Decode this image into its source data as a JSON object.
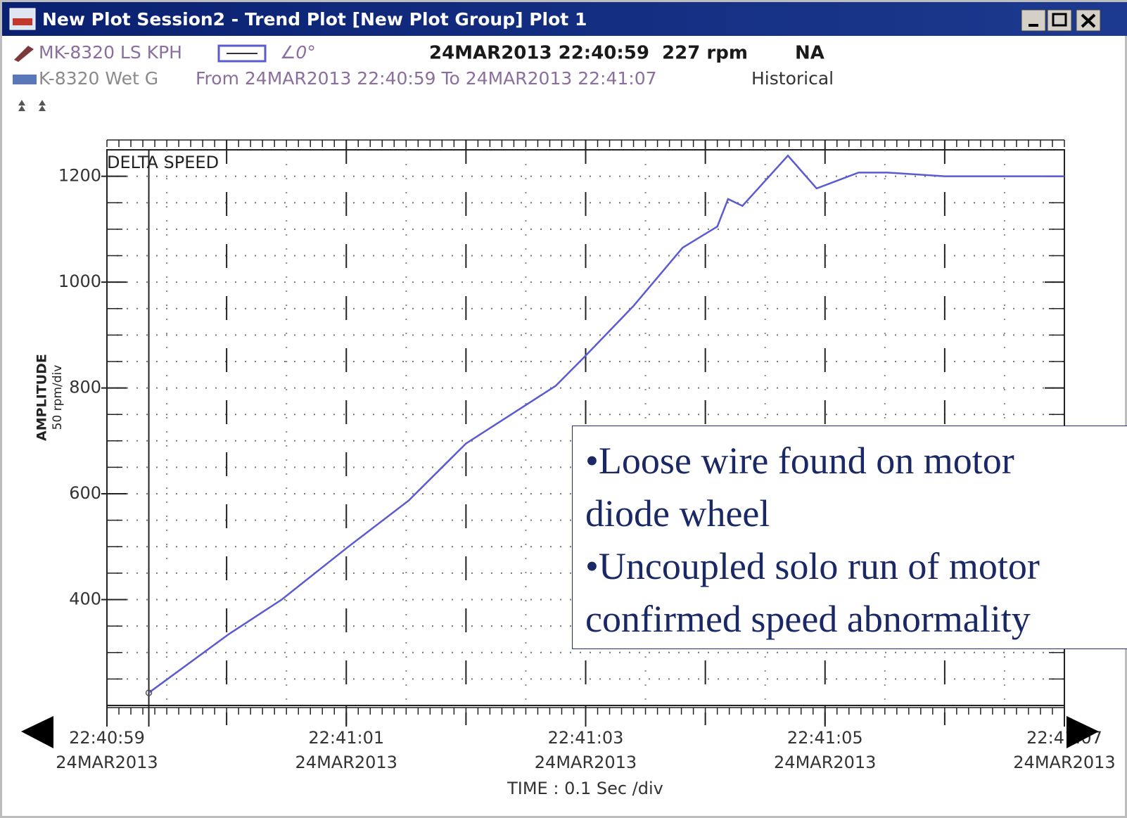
{
  "window": {
    "title": "New Plot Session2 - Trend Plot [New Plot Group] Plot 1",
    "channel": "MK-8320 LS KPH",
    "angle": "∠0°",
    "cursor": "24MAR2013 22:40:59  227 rpm",
    "status": "NA",
    "channel2": "K-8320 Wet G",
    "range": "From 24MAR2013 22:40:59 To 24MAR2013 22:41:07",
    "mode": "Historical"
  },
  "chart_data": {
    "type": "line",
    "ylabel": "AMPLITUDE",
    "ylabel_units": "50 rpm/div",
    "xlabel": "TIME : 0.1 Sec /div",
    "xlim": [
      0,
      8
    ],
    "ylim": [
      200,
      1250
    ],
    "xticks": [
      {
        "value": 0,
        "label": "22:40:59",
        "date": "24MAR2013"
      },
      {
        "value": 2,
        "label": "22:41:01",
        "date": "24MAR2013"
      },
      {
        "value": 4,
        "label": "22:41:03",
        "date": "24MAR2013"
      },
      {
        "value": 6,
        "label": "22:41:05",
        "date": "24MAR2013"
      },
      {
        "value": 8,
        "label": "22:41:07",
        "date": "24MAR2013"
      }
    ],
    "yticks": [
      400,
      600,
      800,
      1000,
      1200
    ],
    "xminor_step": 0.1,
    "yminor_step": 50,
    "grid": true,
    "x": [
      0.35,
      1.02,
      1.46,
      2.0,
      2.52,
      3.0,
      3.75,
      4.0,
      4.4,
      4.81,
      5.1,
      5.19,
      5.31,
      5.69,
      5.93,
      6.28,
      6.52,
      7.0,
      8.0
    ],
    "series": [
      {
        "name": "DELTA SPEED",
        "color": "#5a5ad2",
        "values": [
          224,
          335,
          400,
          497,
          587,
          695,
          804,
          861,
          955,
          1065,
          1105,
          1157,
          1144,
          1239,
          1177,
          1207,
          1207,
          1200,
          1200
        ]
      }
    ],
    "annotation": [
      [
        "•Loose wire found on motor",
        "diode wheel"
      ],
      [
        "•Uncoupled solo run of motor",
        "confirmed speed abnormality"
      ]
    ]
  }
}
